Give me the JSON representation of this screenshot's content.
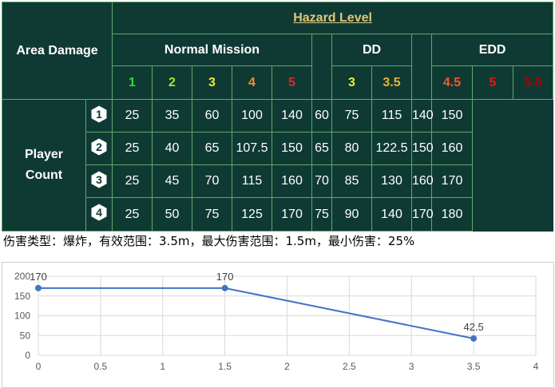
{
  "table": {
    "area_damage_label": "Area Damage",
    "hazard_level_label": "Hazard Level",
    "groups": [
      "Normal Mission",
      "DD",
      "EDD"
    ],
    "levels_normal": [
      {
        "label": "1",
        "color": "#33dd33"
      },
      {
        "label": "2",
        "color": "#99ee33"
      },
      {
        "label": "3",
        "color": "#eeee33"
      },
      {
        "label": "4",
        "color": "#ff8833"
      },
      {
        "label": "5",
        "color": "#ee2222"
      }
    ],
    "levels_dd": [
      {
        "label": "3",
        "color": "#eeee33"
      },
      {
        "label": "3.5",
        "color": "#f0b030"
      }
    ],
    "levels_edd": [
      {
        "label": "4.5",
        "color": "#ff5522"
      },
      {
        "label": "5",
        "color": "#ee1111"
      },
      {
        "label": "5.5",
        "color": "#aa0000"
      }
    ],
    "player_count_line1": "Player",
    "player_count_line2": "Count",
    "rows": [
      {
        "players": "1",
        "normal": [
          "25",
          "35",
          "60",
          "100",
          "140"
        ],
        "dd": [
          "60",
          "75"
        ],
        "edd": [
          "115",
          "140",
          "150"
        ]
      },
      {
        "players": "2",
        "normal": [
          "25",
          "40",
          "65",
          "107.5",
          "150"
        ],
        "dd": [
          "65",
          "80"
        ],
        "edd": [
          "122.5",
          "150",
          "160"
        ]
      },
      {
        "players": "3",
        "normal": [
          "25",
          "45",
          "70",
          "115",
          "160"
        ],
        "dd": [
          "70",
          "85"
        ],
        "edd": [
          "130",
          "160",
          "170"
        ]
      },
      {
        "players": "4",
        "normal": [
          "25",
          "50",
          "75",
          "125",
          "170"
        ],
        "dd": [
          "75",
          "90"
        ],
        "edd": [
          "140",
          "170",
          "180"
        ]
      }
    ],
    "colors": {
      "background": "#0f3a33",
      "border": "#5fa86a",
      "hazard_title": "#e0c77a"
    }
  },
  "description": "伤害类型：爆炸，有效范围：3.5m，最大伤害范围：1.5m，最小伤害：25%",
  "chart_data": {
    "type": "line",
    "title": "",
    "xlabel": "",
    "ylabel": "",
    "x": [
      0,
      1.5,
      3.5
    ],
    "y": [
      170,
      170,
      42.5
    ],
    "point_labels": [
      "170",
      "170",
      "42.5"
    ],
    "xlim": [
      0,
      4
    ],
    "ylim": [
      0,
      200
    ],
    "xticks": [
      "0",
      "0.5",
      "1",
      "1.5",
      "2",
      "2.5",
      "3",
      "3.5",
      "4"
    ],
    "yticks": [
      "0",
      "50",
      "100",
      "150",
      "200"
    ],
    "grid": true,
    "line_color": "#4472c4"
  }
}
